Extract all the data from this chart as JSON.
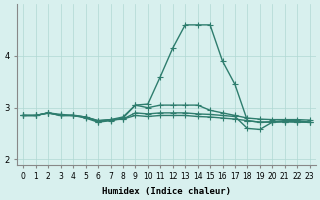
{
  "xlabel": "Humidex (Indice chaleur)",
  "x_values": [
    0,
    1,
    2,
    3,
    4,
    5,
    6,
    7,
    8,
    9,
    10,
    11,
    12,
    13,
    14,
    15,
    16,
    17,
    18,
    19,
    20,
    21,
    22,
    23
  ],
  "series": [
    [
      2.85,
      2.85,
      2.9,
      2.85,
      2.85,
      2.8,
      2.72,
      2.75,
      2.8,
      3.05,
      3.07,
      3.6,
      4.15,
      4.6,
      4.6,
      4.6,
      3.9,
      3.45,
      2.75,
      2.72,
      2.72,
      2.73,
      2.73,
      2.72
    ],
    [
      2.85,
      2.85,
      2.9,
      2.85,
      2.85,
      2.82,
      2.75,
      2.77,
      2.82,
      3.05,
      3.0,
      3.05,
      3.05,
      3.05,
      3.05,
      2.95,
      2.9,
      2.85,
      2.8,
      2.78,
      2.77,
      2.77,
      2.77,
      2.76
    ],
    [
      2.85,
      2.85,
      2.9,
      2.87,
      2.85,
      2.82,
      2.75,
      2.77,
      2.78,
      2.9,
      2.88,
      2.9,
      2.9,
      2.9,
      2.88,
      2.87,
      2.85,
      2.83,
      2.6,
      2.58,
      2.72,
      2.73,
      2.72,
      2.72
    ],
    [
      2.85,
      2.85,
      2.9,
      2.85,
      2.85,
      2.82,
      2.73,
      2.76,
      2.78,
      2.85,
      2.83,
      2.85,
      2.85,
      2.85,
      2.83,
      2.82,
      2.8,
      2.78,
      2.75,
      2.72,
      2.73,
      2.75,
      2.75,
      2.72
    ]
  ],
  "line_color": "#2e7d6e",
  "marker": "+",
  "markersize": 4,
  "linewidth": 1.0,
  "bg_color": "#d8f0ee",
  "grid_color": "#b0d8d4",
  "ylim": [
    1.9,
    5.0
  ],
  "yticks": [
    2,
    3,
    4
  ],
  "xlim": [
    -0.5,
    23.5
  ]
}
